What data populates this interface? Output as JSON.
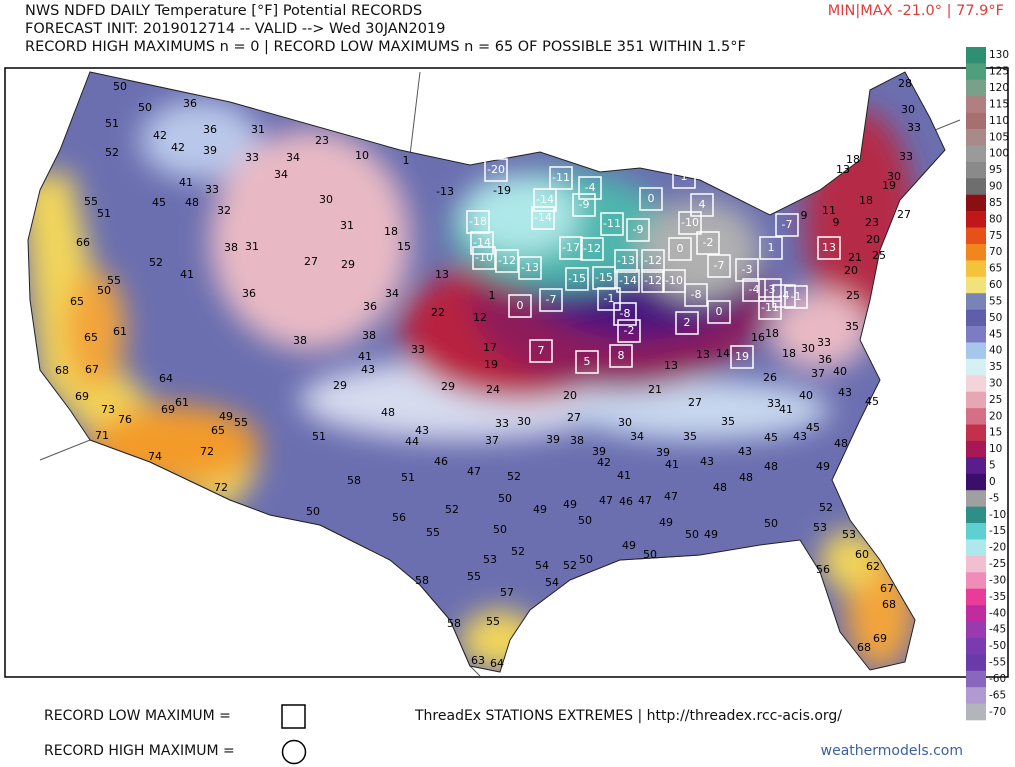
{
  "header": {
    "line1": "NWS NDFD DAILY Temperature [°F] Potential RECORDS",
    "line2": "FORECAST INIT: 2019012714 -- VALID --> Wed 30JAN2019",
    "line3": "RECORD HIGH MAXIMUMS n = 0 | RECORD LOW MAXIMUMS n = 65 OF POSSIBLE 351 WITHIN 1.5°F",
    "minmax": "MIN|MAX -21.0° | 77.9°F"
  },
  "colorbar": {
    "ticks": [
      130,
      125,
      120,
      115,
      110,
      105,
      100,
      95,
      90,
      85,
      80,
      75,
      70,
      65,
      60,
      55,
      50,
      45,
      40,
      35,
      30,
      25,
      20,
      15,
      10,
      5,
      0,
      -5,
      -10,
      -15,
      -20,
      -25,
      -30,
      -35,
      -40,
      -45,
      -50,
      -55,
      -60,
      -65,
      -70
    ]
  },
  "stations": {
    "values": [
      50,
      50,
      36,
      51,
      42,
      36,
      31,
      23,
      10,
      1,
      42,
      52,
      39,
      33,
      34,
      34,
      41,
      33,
      55,
      45,
      48,
      32,
      30,
      31,
      -13,
      -19,
      51,
      66,
      18,
      15,
      38,
      31,
      52,
      27,
      29,
      13,
      41,
      55,
      50,
      65,
      36,
      34,
      1,
      36,
      22,
      65,
      61,
      12,
      38,
      38,
      33,
      17,
      41,
      43,
      19,
      67,
      68,
      64,
      29,
      29,
      24,
      61,
      69,
      73,
      76,
      69,
      49,
      55,
      65,
      71,
      48,
      20,
      33,
      30,
      27,
      39,
      38,
      37,
      44,
      43,
      30,
      34,
      35,
      35,
      27,
      39,
      42,
      39,
      41,
      74,
      72,
      51,
      46,
      47,
      52,
      41,
      43,
      43,
      45,
      43,
      45,
      48,
      48,
      48,
      49,
      48,
      51,
      58,
      72,
      50,
      52,
      49,
      49,
      47,
      46,
      47,
      47,
      56,
      50,
      55,
      50,
      50,
      49,
      50,
      49,
      50,
      52,
      53,
      53,
      52,
      53,
      54,
      52,
      50,
      49,
      50,
      55,
      58,
      54,
      57,
      56,
      60,
      62,
      67,
      68,
      69,
      68,
      58,
      55,
      63,
      64,
      28,
      30,
      33,
      33,
      18,
      13,
      19,
      30,
      18,
      11,
      23,
      27,
      20,
      21,
      25,
      20,
      25,
      35,
      33,
      30,
      36,
      37,
      40,
      43,
      45,
      40,
      41,
      33,
      26,
      18,
      18,
      16,
      14,
      13,
      13,
      21,
      9,
      9
    ]
  },
  "record_low_stations": {
    "values": [
      -20,
      -11,
      -4,
      -9,
      -14,
      -14,
      -18,
      -14,
      -10,
      -12,
      -13,
      -17,
      -12,
      -11,
      -9,
      0,
      1,
      4,
      -10,
      -2,
      0,
      -12,
      -13,
      -15,
      -15,
      -14,
      -12,
      -10,
      -8,
      -7,
      -3,
      1,
      -7,
      -4,
      -3,
      -4,
      -1,
      -1,
      -8,
      -2,
      0,
      -7,
      2,
      0,
      -11,
      19,
      7,
      5,
      8,
      13
    ]
  },
  "legend": {
    "record_low": "RECORD LOW MAXIMUM =",
    "record_high": "RECORD HIGH MAXIMUM =",
    "source": "ThreadEx STATIONS EXTREMES | http://threadex.rcc-acis.org/",
    "credit": "weathermodels.com"
  }
}
